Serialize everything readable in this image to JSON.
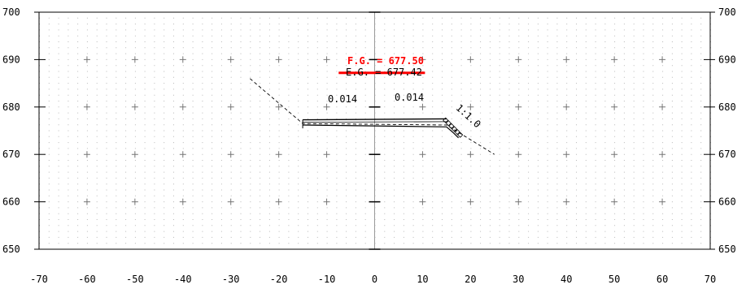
{
  "axes": {
    "x_ticks": [
      -70,
      -60,
      -50,
      -40,
      -30,
      -20,
      -10,
      0,
      10,
      20,
      30,
      40,
      50,
      60,
      70
    ],
    "y_ticks": [
      650,
      660,
      670,
      680,
      690,
      700
    ],
    "x_labels": [
      "-70",
      "-60",
      "-50",
      "-40",
      "-30",
      "-20",
      "-10",
      "0",
      "10",
      "20",
      "30",
      "40",
      "50",
      "60",
      "70"
    ],
    "y_labels": [
      "650",
      "660",
      "670",
      "680",
      "690",
      "700"
    ],
    "xlim": [
      -70,
      70
    ],
    "ylim": [
      650,
      700
    ]
  },
  "annotations": {
    "fg_label": "F.G. = 677.50",
    "eg_label": "E.G. = 677.42",
    "slope_left": "0.014",
    "slope_right": "0.014",
    "side_slope": "1:1.0"
  },
  "colors": {
    "background": "#ffffff",
    "grid_dot": "#b8b8b8",
    "frame": "#000000",
    "centerline": "#9a9a9a",
    "highlight": "#ff0000"
  },
  "chart_data": {
    "type": "line",
    "xlim": [
      -70,
      70
    ],
    "ylim": [
      650,
      700
    ],
    "grid": true,
    "series": [
      {
        "x": [
          -26,
          -15,
          15,
          25
        ],
        "y": [
          686,
          676.5,
          676.2,
          670
        ]
      },
      {
        "x": [
          -15,
          15
        ],
        "y": [
          677.3,
          677.5
        ]
      },
      {
        "x": [
          -15,
          15
        ],
        "y": [
          676.8,
          676.9
        ]
      },
      {
        "x": [
          -15,
          15,
          16.5,
          17.5
        ],
        "y": [
          676.2,
          675.8,
          674.5,
          673.5
        ]
      },
      {
        "x": [
          -15,
          -15
        ],
        "y": [
          675.5,
          677.3
        ]
      },
      {
        "x": [
          -7.5,
          10.5
        ],
        "y": [
          687.2,
          687.2
        ]
      }
    ]
  }
}
